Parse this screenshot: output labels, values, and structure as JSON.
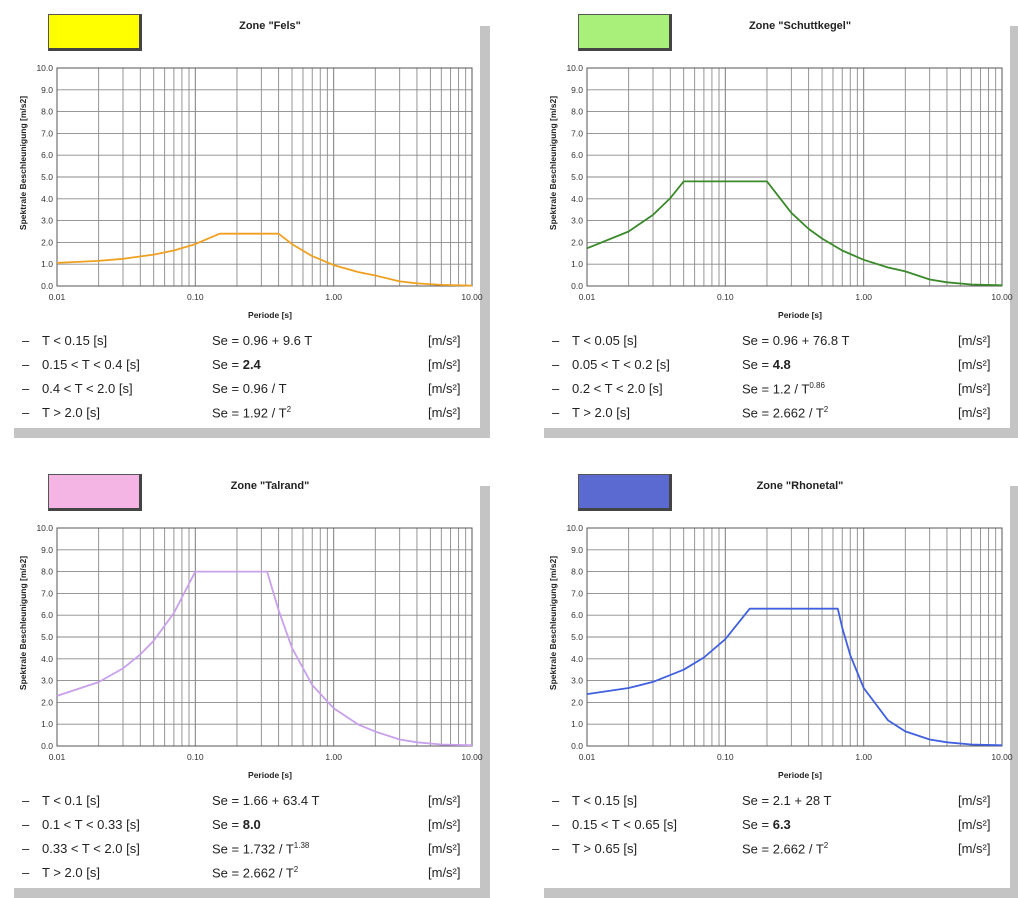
{
  "xlabel": "Periode [s]",
  "ylabel": "Spektrale Beschleunigung [m/s2]",
  "unit": "[m/s²]",
  "x_ticks": [
    "0.01",
    "0.10",
    "1.00",
    "10.00"
  ],
  "y_ticks": [
    "0.0",
    "1.0",
    "2.0",
    "3.0",
    "4.0",
    "5.0",
    "6.0",
    "7.0",
    "8.0",
    "9.0",
    "10.0"
  ],
  "chart_data": [
    {
      "type": "line",
      "title": "Zone \"Fels\"",
      "swatch_color": "#ffff00",
      "line_color": "#f0a020",
      "xscale": "log",
      "xlim": [
        0.01,
        10
      ],
      "ylim": [
        0,
        10
      ],
      "x": [
        0.01,
        0.02,
        0.03,
        0.05,
        0.07,
        0.1,
        0.15,
        0.2,
        0.3,
        0.4,
        0.5,
        0.7,
        1.0,
        1.5,
        2.0,
        3.0,
        4.0,
        6.0,
        10.0
      ],
      "y": [
        1.06,
        1.15,
        1.25,
        1.44,
        1.63,
        1.92,
        2.4,
        2.4,
        2.4,
        2.4,
        1.92,
        1.37,
        0.96,
        0.64,
        0.48,
        0.21,
        0.12,
        0.05,
        0.02
      ],
      "equations": [
        {
          "cond": "T < 0.15 [s]",
          "formula": "Se = 0.96 + 9.6 T",
          "bold": "",
          "sup": ""
        },
        {
          "cond": "0.15 < T < 0.4 [s]",
          "formula": "Se = ",
          "bold": "2.4",
          "sup": ""
        },
        {
          "cond": "0.4 < T < 2.0 [s]",
          "formula": "Se = 0.96 / T",
          "bold": "",
          "sup": ""
        },
        {
          "cond": "T > 2.0 [s]",
          "formula": "Se = 1.92 / T",
          "bold": "",
          "sup": "2"
        }
      ]
    },
    {
      "type": "line",
      "title": "Zone \"Schuttkegel\"",
      "swatch_color": "#a8f07a",
      "line_color": "#3a8a2a",
      "xscale": "log",
      "xlim": [
        0.01,
        10
      ],
      "ylim": [
        0,
        10
      ],
      "x": [
        0.01,
        0.02,
        0.03,
        0.04,
        0.05,
        0.1,
        0.15,
        0.2,
        0.3,
        0.4,
        0.5,
        0.7,
        1.0,
        1.5,
        2.0,
        3.0,
        4.0,
        6.0,
        10.0
      ],
      "y": [
        1.73,
        2.5,
        3.26,
        4.03,
        4.8,
        4.8,
        4.8,
        4.8,
        3.36,
        2.62,
        2.18,
        1.63,
        1.2,
        0.85,
        0.67,
        0.3,
        0.17,
        0.07,
        0.03
      ],
      "equations": [
        {
          "cond": "T < 0.05 [s]",
          "formula": "Se = 0.96 + 76.8 T",
          "bold": "",
          "sup": ""
        },
        {
          "cond": "0.05 < T < 0.2 [s]",
          "formula": "Se = ",
          "bold": "4.8",
          "sup": ""
        },
        {
          "cond": "0.2 < T < 2.0 [s]",
          "formula": "Se = 1.2 / T",
          "bold": "",
          "sup": "0.86"
        },
        {
          "cond": "T > 2.0 [s]",
          "formula": "Se = 2.662 / T",
          "bold": "",
          "sup": "2"
        }
      ]
    },
    {
      "type": "line",
      "title": "Zone \"Talrand\"",
      "swatch_color": "#f4b4e4",
      "line_color": "#c8a0ec",
      "xscale": "log",
      "xlim": [
        0.01,
        10
      ],
      "ylim": [
        0,
        10
      ],
      "x": [
        0.01,
        0.02,
        0.03,
        0.04,
        0.05,
        0.07,
        0.1,
        0.2,
        0.33,
        0.4,
        0.5,
        0.7,
        1.0,
        1.5,
        2.0,
        3.0,
        4.0,
        6.0,
        10.0
      ],
      "y": [
        2.3,
        2.93,
        3.56,
        4.2,
        4.83,
        6.1,
        8.0,
        8.0,
        8.0,
        6.23,
        4.5,
        2.8,
        1.73,
        0.99,
        0.66,
        0.3,
        0.17,
        0.07,
        0.03
      ],
      "equations": [
        {
          "cond": "T < 0.1 [s]",
          "formula": "Se = 1.66 + 63.4 T",
          "bold": "",
          "sup": ""
        },
        {
          "cond": "0.1 < T < 0.33 [s]",
          "formula": "Se = ",
          "bold": "8.0",
          "sup": ""
        },
        {
          "cond": "0.33 < T < 2.0 [s]",
          "formula": "Se = 1.732 / T",
          "bold": "",
          "sup": "1.38"
        },
        {
          "cond": "T > 2.0 [s]",
          "formula": "Se = 2.662 / T",
          "bold": "",
          "sup": "2"
        }
      ]
    },
    {
      "type": "line",
      "title": "Zone \"Rhonetal\"",
      "swatch_color": "#5a6ad0",
      "line_color": "#4060e0",
      "xscale": "log",
      "xlim": [
        0.01,
        10
      ],
      "ylim": [
        0,
        10
      ],
      "x": [
        0.01,
        0.02,
        0.03,
        0.05,
        0.07,
        0.1,
        0.15,
        0.3,
        0.5,
        0.65,
        0.7,
        0.8,
        1.0,
        1.5,
        2.0,
        3.0,
        4.0,
        6.0,
        10.0
      ],
      "y": [
        2.38,
        2.66,
        2.94,
        3.5,
        4.06,
        4.9,
        6.3,
        6.3,
        6.3,
        6.3,
        5.43,
        4.16,
        2.66,
        1.18,
        0.67,
        0.3,
        0.17,
        0.07,
        0.03
      ],
      "equations": [
        {
          "cond": "T < 0.15 [s]",
          "formula": "Se = 2.1 + 28 T",
          "bold": "",
          "sup": ""
        },
        {
          "cond": "0.15 < T < 0.65 [s]",
          "formula": "Se = ",
          "bold": "6.3",
          "sup": ""
        },
        {
          "cond": "T > 0.65 [s]",
          "formula": "Se = 2.662 / T",
          "bold": "",
          "sup": "2"
        }
      ]
    }
  ]
}
